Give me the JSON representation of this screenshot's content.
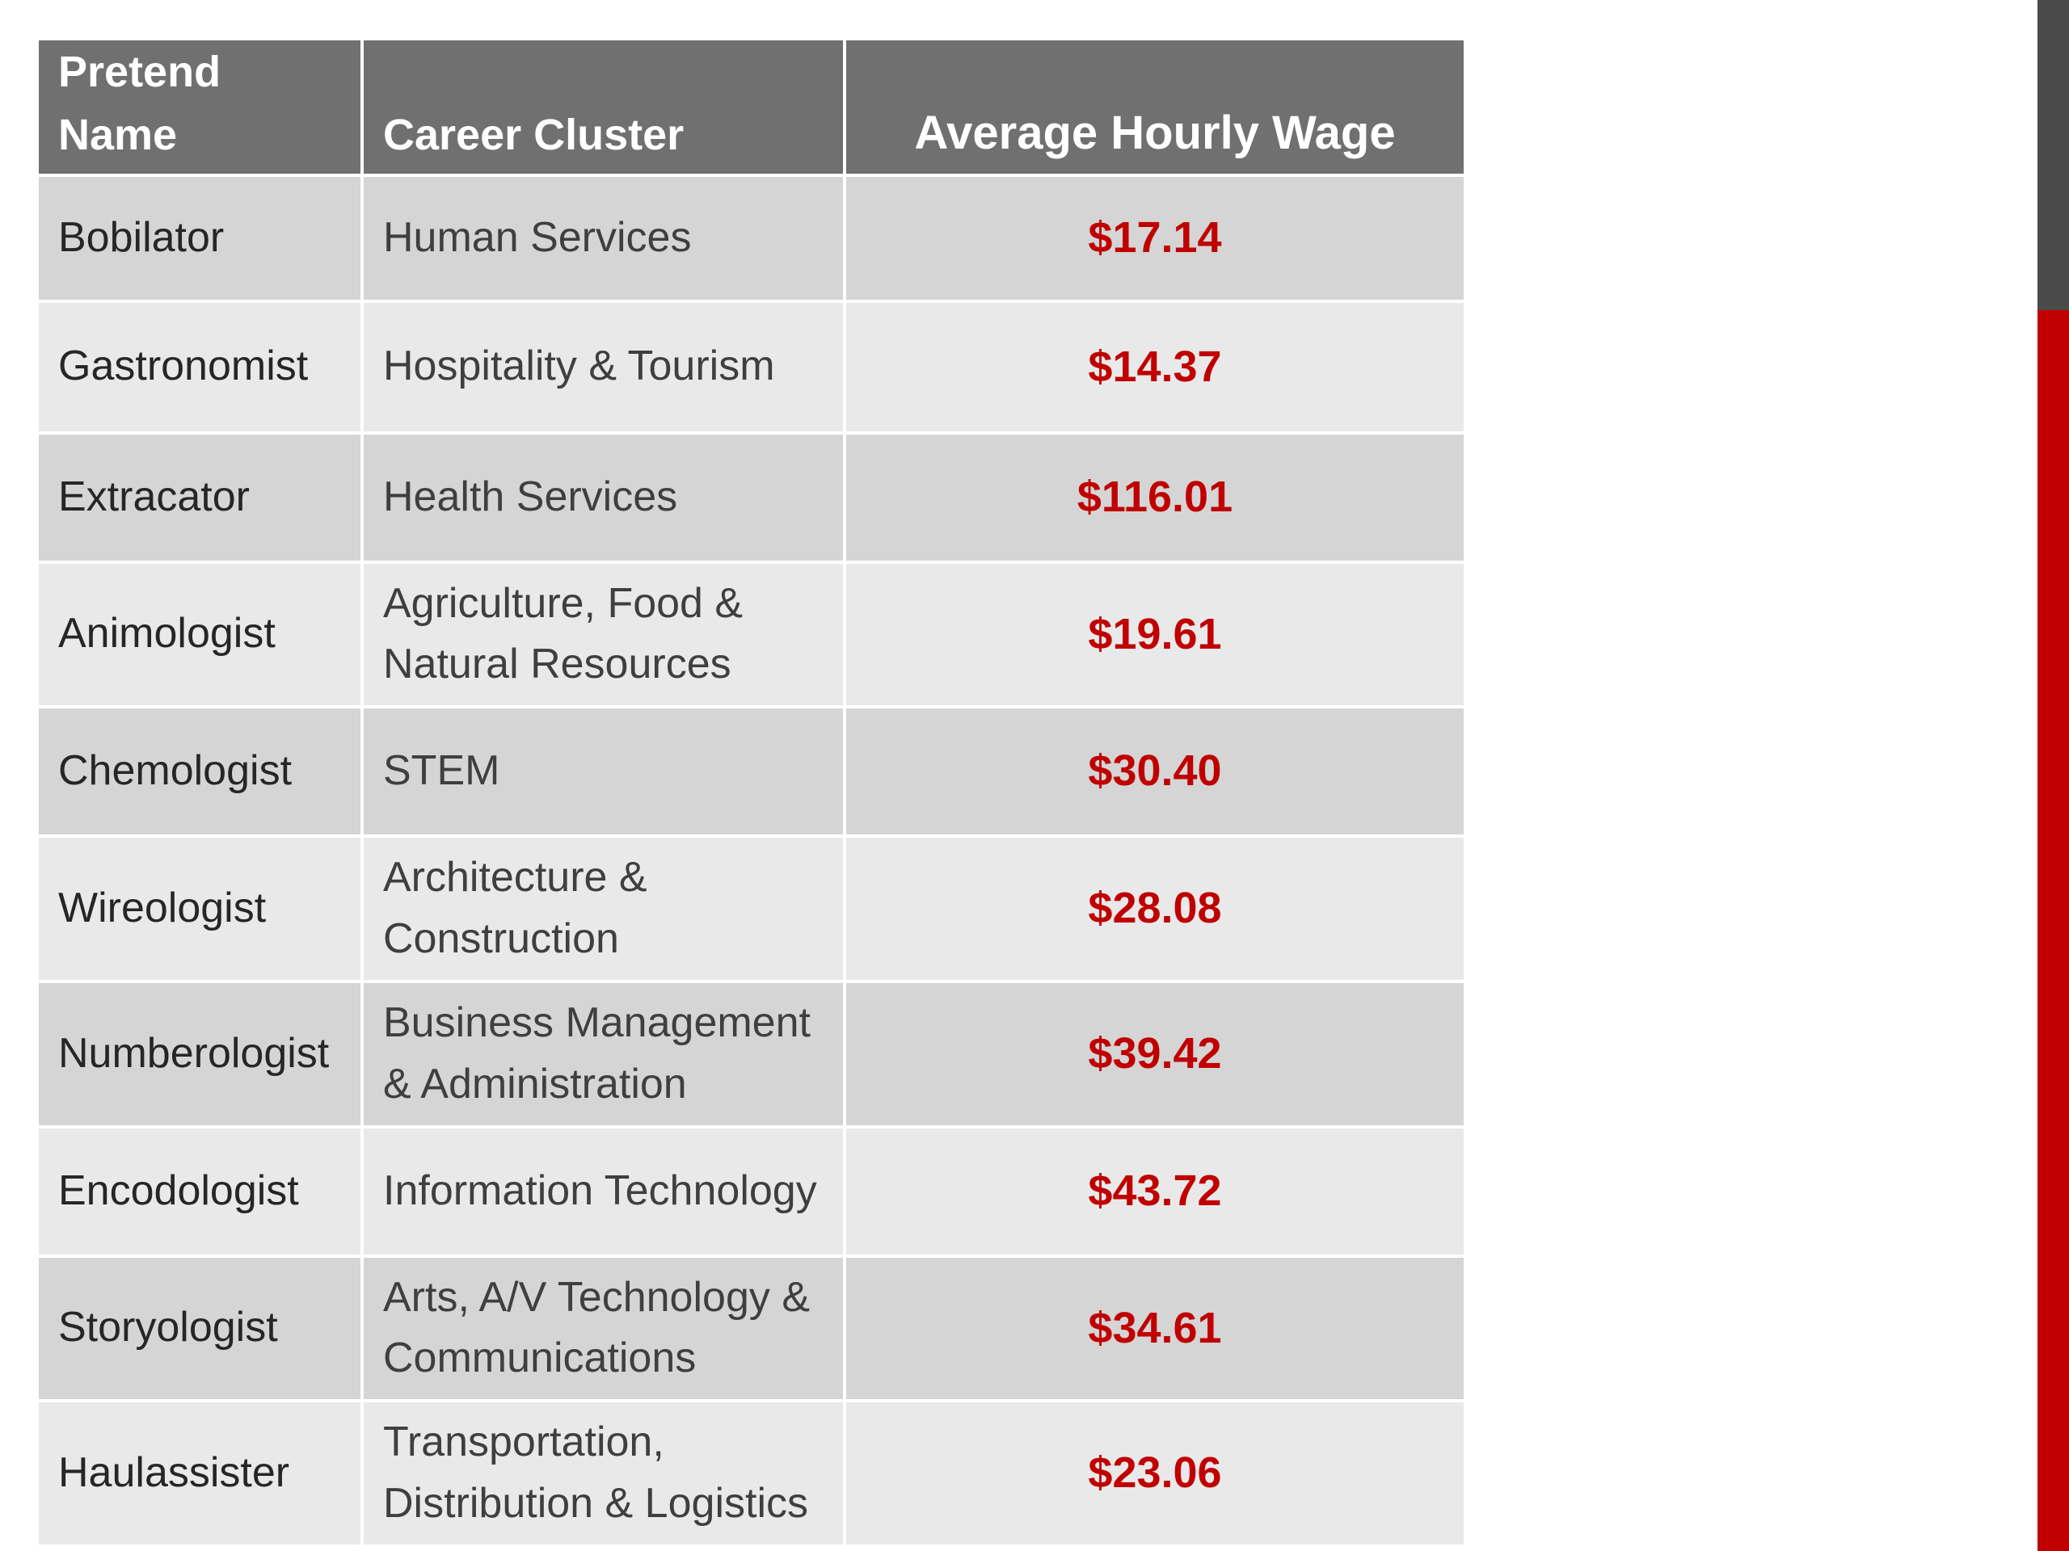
{
  "table": {
    "header": [
      "Pretend Name",
      "Career Cluster",
      "Average Hourly Wage"
    ],
    "rows": [
      [
        "Bobilator",
        "Human Services",
        "$17.14"
      ],
      [
        "Gastronomist",
        "Hospitality & Tourism",
        "$14.37"
      ],
      [
        "Extracator",
        "Health Services",
        "$116.01"
      ],
      [
        "Animologist",
        "Agriculture, Food & Natural Resources",
        "$19.61"
      ],
      [
        "Chemologist",
        "STEM",
        "$30.40"
      ],
      [
        "Wireologist",
        "Architecture & Construction",
        "$28.08"
      ],
      [
        "Numberologist",
        "Business Management & Administration",
        "$39.42"
      ],
      [
        "Encodologist",
        "Information Technology",
        "$43.72"
      ],
      [
        "Storyologist",
        "Arts, A/V Technology & Communications",
        "$34.61"
      ],
      [
        "Haulassister",
        "Transportation, Distribution & Logistics",
        "$23.06"
      ]
    ]
  }
}
